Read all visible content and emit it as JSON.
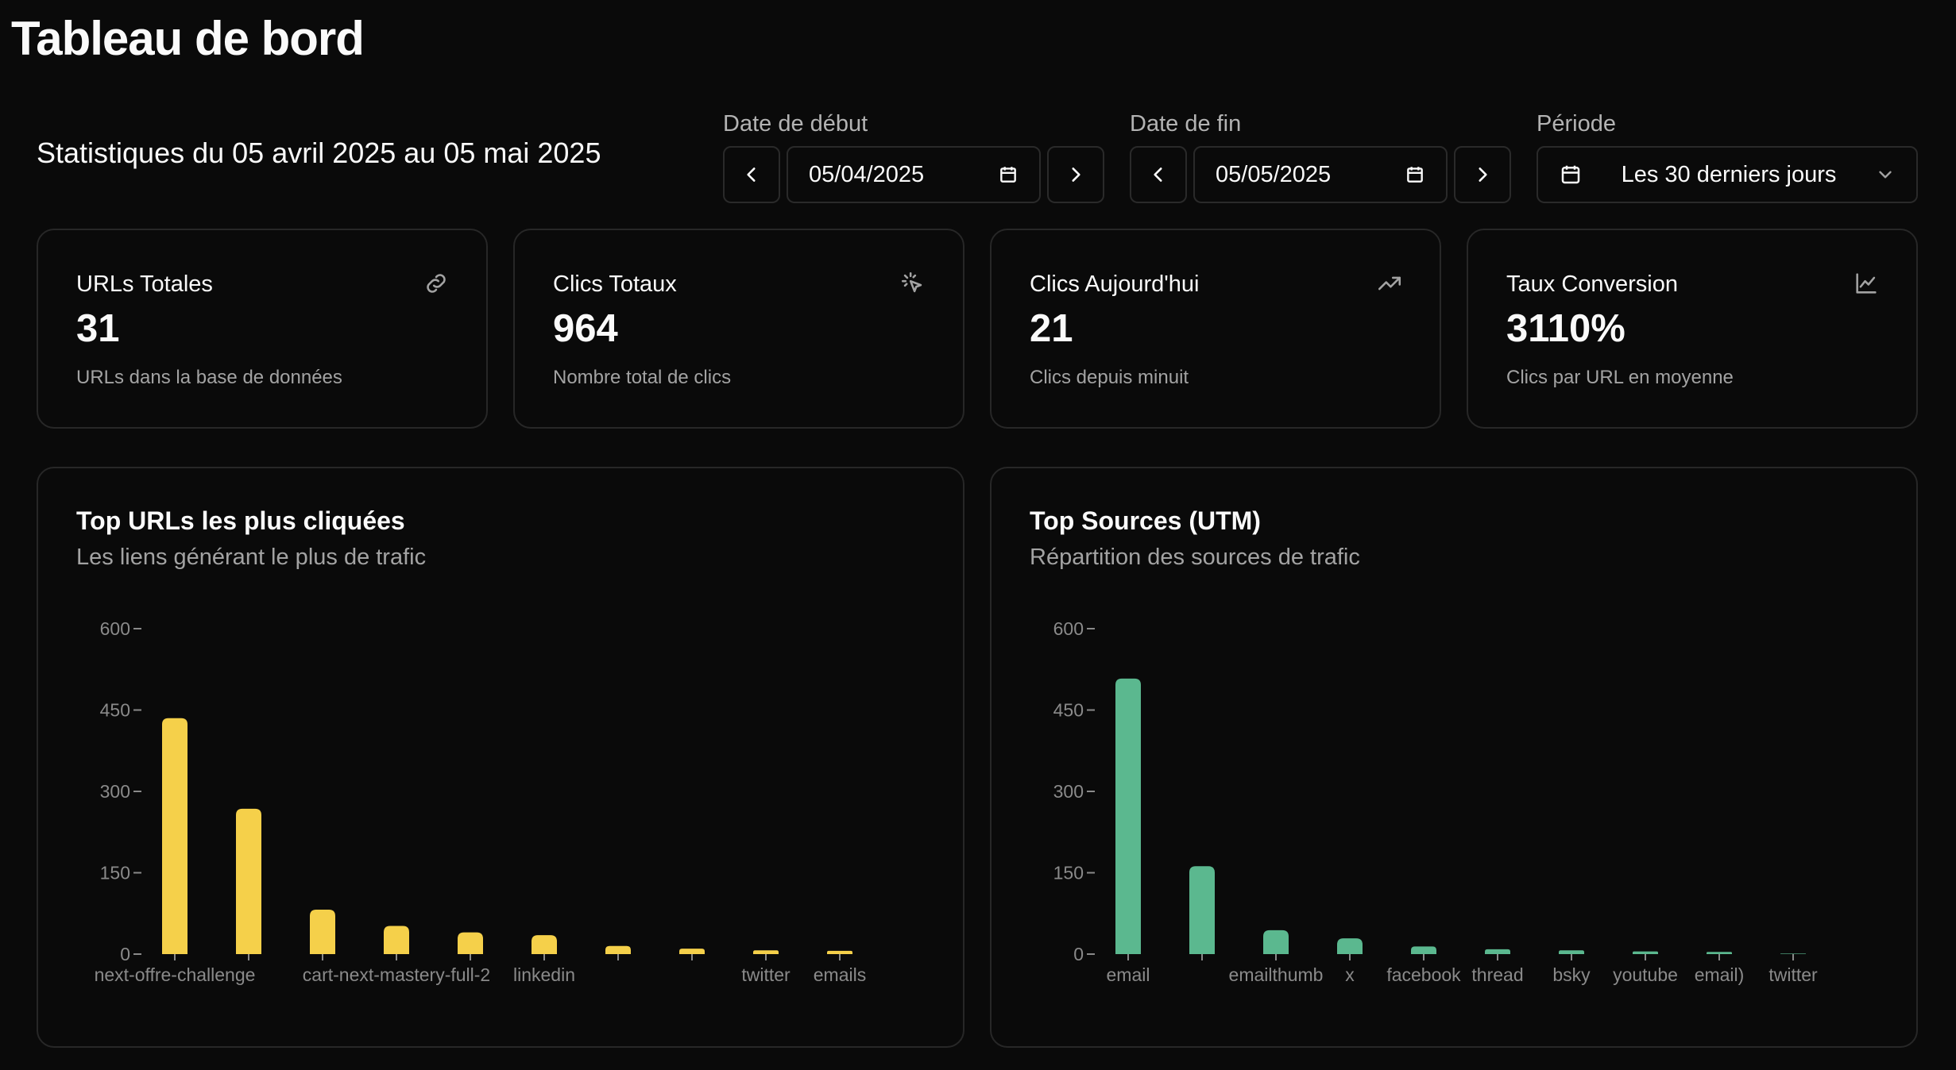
{
  "page": {
    "title": "Tableau de bord",
    "range_text": "Statistiques du 05 avril 2025 au 05 mai 2025"
  },
  "controls": {
    "start": {
      "label": "Date de début",
      "value": "05/04/2025",
      "icon": "calendar-icon"
    },
    "end": {
      "label": "Date de fin",
      "value": "05/05/2025",
      "icon": "calendar-icon"
    },
    "period": {
      "label": "Période",
      "value": "Les 30 derniers jours",
      "icon": "calendar-icon"
    }
  },
  "stats": [
    {
      "label": "URLs Totales",
      "value": "31",
      "sub": "URLs dans la base de données",
      "icon": "link-icon"
    },
    {
      "label": "Clics Totaux",
      "value": "964",
      "sub": "Nombre total de clics",
      "icon": "pointer-click-icon"
    },
    {
      "label": "Clics Aujourd'hui",
      "value": "21",
      "sub": "Clics depuis minuit",
      "icon": "trending-up-icon"
    },
    {
      "label": "Taux Conversion",
      "value": "3110%",
      "sub": "Clics par URL en moyenne",
      "icon": "line-chart-icon"
    }
  ],
  "colors": {
    "accent_yellow": "#f5d04a",
    "accent_green": "#5bb88f",
    "background": "#0a0a0a",
    "border": "#272727"
  },
  "chart_data": [
    {
      "type": "bar",
      "title": "Top URLs les plus cliquées",
      "subtitle": "Les liens générant le plus de trafic",
      "categories": [
        "next-offre-challenge",
        "",
        "",
        "cart-next-mastery-full-2",
        "",
        "linkedin",
        "",
        "",
        "twitter",
        "emails"
      ],
      "x_tick_labels": [
        "next-offre-challenge",
        "cart-next-mastery-full-2",
        "linkedin",
        "twitter",
        "emails"
      ],
      "values": [
        435,
        268,
        82,
        52,
        40,
        35,
        15,
        10,
        7,
        6
      ],
      "ylim": [
        0,
        600
      ],
      "yticks": [
        0,
        150,
        300,
        450,
        600
      ],
      "grid": false,
      "color": "#f5d04a"
    },
    {
      "type": "bar",
      "title": "Top Sources (UTM)",
      "subtitle": "Répartition des sources de trafic",
      "categories": [
        "email",
        "",
        "emailthumb",
        "x",
        "facebook",
        "thread",
        "bsky",
        "youtube",
        "email)",
        "twitter"
      ],
      "values": [
        508,
        162,
        44,
        29,
        14,
        9,
        7,
        5,
        4,
        1
      ],
      "ylim": [
        0,
        600
      ],
      "yticks": [
        0,
        150,
        300,
        450,
        600
      ],
      "grid": false,
      "color": "#5bb88f"
    }
  ]
}
